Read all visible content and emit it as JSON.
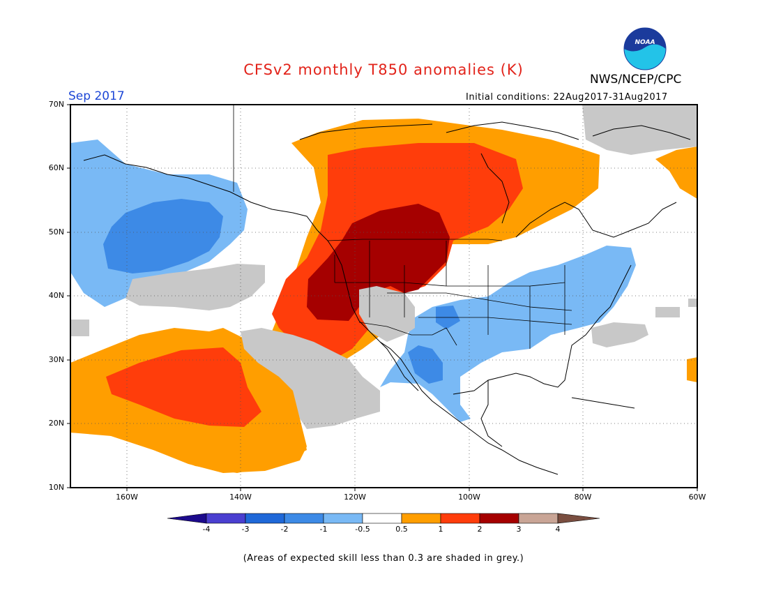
{
  "title": "CFSv2 monthly T850 anomalies (K)",
  "org": "NWS/NCEP/CPC",
  "logo_text": "NOAA",
  "valid_month": "Sep 2017",
  "initial_conditions": "Initial conditions: 22Aug2017-31Aug2017",
  "footnote": "(Areas of expected skill less than 0.3 are shaded in grey.)",
  "lat_labels": [
    "70N",
    "60N",
    "50N",
    "40N",
    "30N",
    "20N",
    "10N"
  ],
  "lon_labels": [
    "160W",
    "140W",
    "120W",
    "100W",
    "80W",
    "60W"
  ],
  "colorbar": {
    "labels": [
      "-4",
      "-3",
      "-2",
      "-1",
      "-0.5",
      "0.5",
      "1",
      "2",
      "3",
      "4"
    ],
    "colors": [
      "#1c0a8c",
      "#4a3fd0",
      "#1f68d8",
      "#3d8ae6",
      "#79b9f5",
      "#ffffff",
      "#ff9e00",
      "#ff3d0b",
      "#a50000",
      "#c9a596",
      "#7a4e40"
    ],
    "skill_grey": "#c8c8c8"
  },
  "map": {
    "lon_range": [
      -172,
      -60
    ],
    "lat_range": [
      10,
      70
    ]
  }
}
